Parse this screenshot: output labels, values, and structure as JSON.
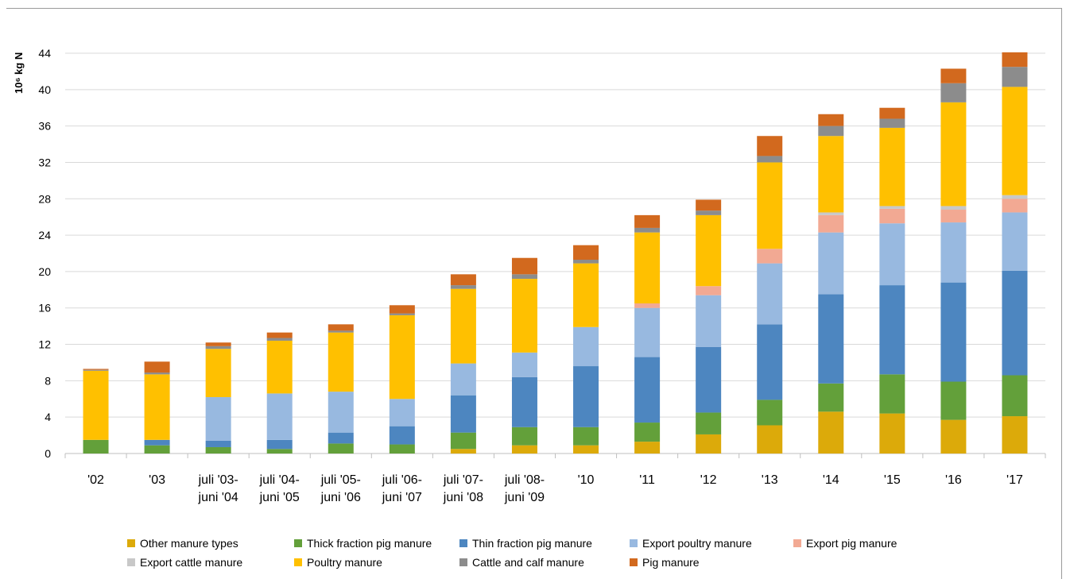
{
  "chart_data": {
    "type": "bar",
    "stacked": true,
    "ylabel": "10⁶ kg N",
    "ylim": [
      0,
      44
    ],
    "yticks": [
      0,
      4,
      8,
      12,
      16,
      20,
      24,
      28,
      32,
      36,
      40,
      44
    ],
    "grid": true,
    "legend_position": "bottom",
    "categories": [
      [
        "'02"
      ],
      [
        "'03"
      ],
      [
        "juli '03-",
        "juni '04"
      ],
      [
        "juli '04-",
        "juni '05"
      ],
      [
        "juli '05-",
        "juni '06"
      ],
      [
        "juli '06-",
        "juni '07"
      ],
      [
        "juli '07-",
        "juni '08"
      ],
      [
        "juli '08-",
        "juni '09"
      ],
      [
        "'10"
      ],
      [
        "'11"
      ],
      [
        "'12"
      ],
      [
        "'13"
      ],
      [
        "'14"
      ],
      [
        "'15"
      ],
      [
        "'16"
      ],
      [
        "'17"
      ]
    ],
    "series": [
      {
        "name": "Other manure types",
        "color": "#dcaa0a",
        "values": [
          0,
          0,
          0,
          0,
          0,
          0,
          0.5,
          0.9,
          0.9,
          1.3,
          2.1,
          3.1,
          4.6,
          4.4,
          3.7,
          4.1
        ]
      },
      {
        "name": "Thick fraction pig manure",
        "color": "#63a03a",
        "values": [
          1.5,
          0.9,
          0.7,
          0.5,
          1.1,
          1.0,
          1.8,
          2.0,
          2.0,
          2.1,
          2.4,
          2.8,
          3.1,
          4.3,
          4.2,
          4.5
        ]
      },
      {
        "name": "Thin fraction pig manure",
        "color": "#4d86c0",
        "values": [
          0,
          0.6,
          0.7,
          1.0,
          1.2,
          2.0,
          4.1,
          5.5,
          6.7,
          7.2,
          7.2,
          8.3,
          9.8,
          9.8,
          10.9,
          11.5
        ]
      },
      {
        "name": "Export poultry manure",
        "color": "#98b9e0",
        "values": [
          0,
          0,
          4.8,
          5.1,
          4.5,
          3.0,
          3.5,
          2.7,
          4.3,
          5.4,
          5.7,
          6.7,
          6.8,
          6.8,
          6.6,
          6.4
        ]
      },
      {
        "name": "Export pig manure",
        "color": "#f2a993",
        "values": [
          0,
          0,
          0,
          0,
          0,
          0,
          0,
          0,
          0,
          0.5,
          1.0,
          1.6,
          1.9,
          1.6,
          1.4,
          1.5
        ]
      },
      {
        "name": "Export cattle manure",
        "color": "#c8c8c8",
        "values": [
          0,
          0,
          0,
          0,
          0,
          0,
          0,
          0,
          0,
          0,
          0,
          0,
          0.3,
          0.3,
          0.4,
          0.4
        ]
      },
      {
        "name": "Poultry manure",
        "color": "#ffc000",
        "values": [
          7.6,
          7.2,
          5.3,
          5.8,
          6.5,
          9.2,
          8.2,
          8.1,
          7.0,
          7.8,
          7.8,
          9.5,
          8.4,
          8.6,
          11.4,
          11.9
        ]
      },
      {
        "name": "Cattle and calf manure",
        "color": "#8c8c8c",
        "values": [
          0.1,
          0.2,
          0.3,
          0.3,
          0.2,
          0.2,
          0.4,
          0.5,
          0.4,
          0.5,
          0.5,
          0.7,
          1.1,
          1.0,
          2.1,
          2.2
        ]
      },
      {
        "name": "Pig manure",
        "color": "#d2691e",
        "values": [
          0.1,
          1.2,
          0.4,
          0.6,
          0.7,
          0.9,
          1.2,
          1.8,
          1.6,
          1.4,
          1.2,
          2.2,
          1.3,
          1.2,
          1.6,
          1.6
        ]
      }
    ]
  }
}
